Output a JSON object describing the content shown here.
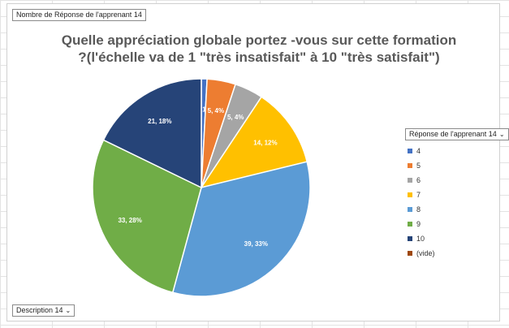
{
  "chart_data": {
    "type": "pie",
    "title_line1": "Quelle appréciation globale portez -vous sur cette formation",
    "title_line2": "?(l'échelle va de 1 \"très insatisfait\" à 10 \"très satisfait\")",
    "value_field": "Nombre de Réponse de l'apprenant 14",
    "legend_field": "Réponse de l'apprenant 14",
    "axis_field": "Description 14",
    "slices": [
      {
        "label": "4",
        "value": 1,
        "data_label": "1, 1%",
        "color": "#4472C4"
      },
      {
        "label": "5",
        "value": 5,
        "data_label": "5, 4%",
        "color": "#ED7D31"
      },
      {
        "label": "6",
        "value": 5,
        "data_label": "5, 4%",
        "color": "#A5A5A5"
      },
      {
        "label": "7",
        "value": 14,
        "data_label": "14, 12%",
        "color": "#FFC000"
      },
      {
        "label": "8",
        "value": 39,
        "data_label": "39, 33%",
        "color": "#5B9BD5"
      },
      {
        "label": "9",
        "value": 33,
        "data_label": "33, 28%",
        "color": "#70AD47"
      },
      {
        "label": "10",
        "value": 21,
        "data_label": "21, 18%",
        "color": "#264478"
      },
      {
        "label": "(vide)",
        "value": 0,
        "data_label": "",
        "color": "#9E480E"
      }
    ],
    "legend_placement": "right"
  }
}
